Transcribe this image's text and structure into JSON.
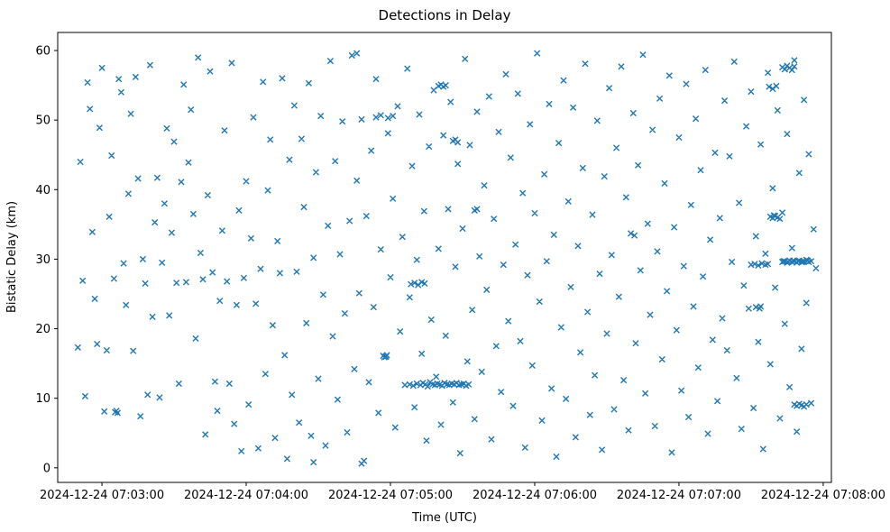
{
  "chart_data": {
    "type": "scatter",
    "title": "Detections in Delay",
    "xlabel": "Time (UTC)",
    "ylabel": "Bistatic Delay (km)",
    "marker": "x",
    "color": "#1f77b4",
    "grid": false,
    "legend": "none",
    "x_unit": "seconds after 2024-12-24 07:03:00 UTC",
    "xlim_seconds": [
      -18.4,
      303.4
    ],
    "ylim": [
      -2.1,
      62.6
    ],
    "x_ticks_seconds": [
      0,
      60,
      120,
      180,
      240,
      300
    ],
    "x_tick_labels": [
      "2024-12-24 07:03:00",
      "2024-12-24 07:04:00",
      "2024-12-24 07:05:00",
      "2024-12-24 07:06:00",
      "2024-12-24 07:07:00",
      "2024-12-24 07:08:00"
    ],
    "y_ticks": [
      0,
      10,
      20,
      30,
      40,
      50,
      60
    ],
    "points": [
      [
        -10,
        17.3
      ],
      [
        -9,
        44.0
      ],
      [
        -8,
        26.9
      ],
      [
        -7,
        10.3
      ],
      [
        -6,
        55.4
      ],
      [
        -5,
        51.6
      ],
      [
        -4,
        33.9
      ],
      [
        -3,
        24.3
      ],
      [
        -2,
        17.8
      ],
      [
        -1,
        48.9
      ],
      [
        0,
        57.5
      ],
      [
        1,
        8.1
      ],
      [
        2,
        16.9
      ],
      [
        3,
        36.1
      ],
      [
        4,
        44.9
      ],
      [
        5,
        27.2
      ],
      [
        6,
        8.2
      ],
      [
        7,
        55.9
      ],
      [
        8,
        54.0
      ],
      [
        9,
        29.4
      ],
      [
        10,
        23.4
      ],
      [
        11,
        39.4
      ],
      [
        12,
        50.9
      ],
      [
        13,
        16.8
      ],
      [
        14,
        56.2
      ],
      [
        15,
        41.6
      ],
      [
        16,
        7.4
      ],
      [
        17,
        30.0
      ],
      [
        18,
        26.5
      ],
      [
        19,
        10.5
      ],
      [
        20,
        57.9
      ],
      [
        21,
        21.7
      ],
      [
        22,
        35.3
      ],
      [
        23,
        41.7
      ],
      [
        24,
        10.1
      ],
      [
        25,
        29.5
      ],
      [
        26,
        38.0
      ],
      [
        27,
        48.8
      ],
      [
        28,
        21.9
      ],
      [
        29,
        33.8
      ],
      [
        30,
        46.9
      ],
      [
        31,
        26.6
      ],
      [
        32,
        12.1
      ],
      [
        33,
        41.1
      ],
      [
        34,
        55.1
      ],
      [
        35,
        26.7
      ],
      [
        36,
        43.9
      ],
      [
        37,
        51.5
      ],
      [
        38,
        36.5
      ],
      [
        39,
        18.6
      ],
      [
        40,
        59.0
      ],
      [
        41,
        30.9
      ],
      [
        42,
        27.1
      ],
      [
        43,
        4.8
      ],
      [
        44,
        39.2
      ],
      [
        45,
        57.0
      ],
      [
        46,
        28.1
      ],
      [
        47,
        12.4
      ],
      [
        48,
        8.2
      ],
      [
        49,
        24.0
      ],
      [
        50,
        34.1
      ],
      [
        51,
        48.5
      ],
      [
        52,
        26.8
      ],
      [
        53,
        12.1
      ],
      [
        54,
        58.2
      ],
      [
        55,
        6.3
      ],
      [
        56,
        23.4
      ],
      [
        57,
        37.0
      ],
      [
        58,
        2.4
      ],
      [
        59,
        27.3
      ],
      [
        60,
        41.2
      ],
      [
        61,
        9.1
      ],
      [
        62,
        33.0
      ],
      [
        63,
        50.4
      ],
      [
        64,
        23.6
      ],
      [
        65,
        2.8
      ],
      [
        66,
        28.6
      ],
      [
        67,
        55.5
      ],
      [
        68,
        13.5
      ],
      [
        69,
        39.9
      ],
      [
        70,
        47.2
      ],
      [
        71,
        20.5
      ],
      [
        72,
        4.3
      ],
      [
        73,
        32.6
      ],
      [
        74,
        28.0
      ],
      [
        75,
        56.0
      ],
      [
        76,
        16.2
      ],
      [
        77,
        1.3
      ],
      [
        78,
        44.3
      ],
      [
        79,
        10.5
      ],
      [
        80,
        52.1
      ],
      [
        81,
        28.2
      ],
      [
        82,
        6.5
      ],
      [
        83,
        47.3
      ],
      [
        84,
        37.5
      ],
      [
        85,
        20.8
      ],
      [
        86,
        55.3
      ],
      [
        87,
        4.6
      ],
      [
        88,
        30.2
      ],
      [
        89,
        42.5
      ],
      [
        90,
        12.8
      ],
      [
        91,
        50.6
      ],
      [
        92,
        24.9
      ],
      [
        93,
        3.2
      ],
      [
        94,
        34.8
      ],
      [
        95,
        58.5
      ],
      [
        96,
        18.9
      ],
      [
        97,
        44.1
      ],
      [
        98,
        9.8
      ],
      [
        99,
        30.7
      ],
      [
        100,
        49.8
      ],
      [
        101,
        22.2
      ],
      [
        102,
        5.1
      ],
      [
        103,
        35.5
      ],
      [
        104,
        59.3
      ],
      [
        105,
        14.2
      ],
      [
        106,
        41.3
      ],
      [
        107,
        25.1
      ],
      [
        108,
        50.1
      ],
      [
        109,
        1.0
      ],
      [
        110,
        36.2
      ],
      [
        111,
        12.3
      ],
      [
        112,
        45.6
      ],
      [
        113,
        23.1
      ],
      [
        114,
        55.9
      ],
      [
        115,
        7.9
      ],
      [
        116,
        31.4
      ],
      [
        117,
        16.1
      ],
      [
        118,
        16.0
      ],
      [
        119,
        48.1
      ],
      [
        120,
        27.4
      ],
      [
        121,
        38.7
      ],
      [
        122,
        5.8
      ],
      [
        123,
        52.0
      ],
      [
        124,
        19.6
      ],
      [
        125,
        33.2
      ],
      [
        126,
        11.9
      ],
      [
        127,
        57.4
      ],
      [
        128,
        24.5
      ],
      [
        129,
        43.4
      ],
      [
        130,
        8.7
      ],
      [
        131,
        29.9
      ],
      [
        132,
        50.8
      ],
      [
        133,
        16.4
      ],
      [
        134,
        36.9
      ],
      [
        135,
        3.9
      ],
      [
        136,
        46.2
      ],
      [
        137,
        21.3
      ],
      [
        138,
        54.3
      ],
      [
        139,
        13.1
      ],
      [
        140,
        31.5
      ],
      [
        141,
        6.2
      ],
      [
        142,
        47.8
      ],
      [
        143,
        19.0
      ],
      [
        144,
        37.2
      ],
      [
        145,
        52.6
      ],
      [
        146,
        9.4
      ],
      [
        147,
        28.9
      ],
      [
        148,
        43.7
      ],
      [
        149,
        2.1
      ],
      [
        150,
        34.4
      ],
      [
        151,
        58.8
      ],
      [
        152,
        15.3
      ],
      [
        153,
        46.4
      ],
      [
        154,
        22.7
      ],
      [
        155,
        7.0
      ],
      [
        156,
        51.2
      ],
      [
        157,
        30.4
      ],
      [
        158,
        13.8
      ],
      [
        159,
        40.6
      ],
      [
        160,
        25.6
      ],
      [
        161,
        53.4
      ],
      [
        162,
        4.1
      ],
      [
        163,
        35.8
      ],
      [
        164,
        17.5
      ],
      [
        165,
        48.3
      ],
      [
        166,
        10.9
      ],
      [
        167,
        29.2
      ],
      [
        168,
        56.6
      ],
      [
        169,
        21.1
      ],
      [
        170,
        44.6
      ],
      [
        171,
        8.9
      ],
      [
        172,
        32.1
      ],
      [
        173,
        53.8
      ],
      [
        174,
        18.2
      ],
      [
        175,
        39.5
      ],
      [
        176,
        2.9
      ],
      [
        177,
        27.7
      ],
      [
        178,
        49.4
      ],
      [
        179,
        14.7
      ],
      [
        180,
        36.6
      ],
      [
        181,
        59.6
      ],
      [
        182,
        23.9
      ],
      [
        183,
        6.8
      ],
      [
        184,
        42.2
      ],
      [
        185,
        29.7
      ],
      [
        186,
        52.3
      ],
      [
        187,
        11.4
      ],
      [
        188,
        33.5
      ],
      [
        189,
        1.6
      ],
      [
        190,
        46.7
      ],
      [
        191,
        20.2
      ],
      [
        192,
        55.7
      ],
      [
        193,
        9.9
      ],
      [
        194,
        38.3
      ],
      [
        195,
        26.0
      ],
      [
        196,
        51.8
      ],
      [
        197,
        4.4
      ],
      [
        198,
        31.9
      ],
      [
        199,
        16.6
      ],
      [
        200,
        43.1
      ],
      [
        201,
        58.1
      ],
      [
        202,
        22.4
      ],
      [
        203,
        7.6
      ],
      [
        204,
        36.4
      ],
      [
        205,
        13.3
      ],
      [
        206,
        49.9
      ],
      [
        207,
        27.9
      ],
      [
        208,
        2.6
      ],
      [
        209,
        41.9
      ],
      [
        210,
        19.3
      ],
      [
        211,
        54.6
      ],
      [
        212,
        30.6
      ],
      [
        213,
        8.4
      ],
      [
        214,
        46.0
      ],
      [
        215,
        24.6
      ],
      [
        216,
        57.7
      ],
      [
        217,
        12.6
      ],
      [
        218,
        38.9
      ],
      [
        219,
        5.4
      ],
      [
        220,
        33.7
      ],
      [
        221,
        51.0
      ],
      [
        222,
        17.9
      ],
      [
        223,
        43.5
      ],
      [
        224,
        28.4
      ],
      [
        225,
        59.4
      ],
      [
        226,
        10.7
      ],
      [
        227,
        35.1
      ],
      [
        228,
        22.0
      ],
      [
        229,
        48.6
      ],
      [
        230,
        6.0
      ],
      [
        231,
        31.1
      ],
      [
        232,
        53.1
      ],
      [
        233,
        15.6
      ],
      [
        234,
        40.9
      ],
      [
        235,
        25.4
      ],
      [
        236,
        56.4
      ],
      [
        237,
        2.2
      ],
      [
        238,
        34.6
      ],
      [
        239,
        19.8
      ],
      [
        240,
        47.5
      ],
      [
        241,
        11.1
      ],
      [
        242,
        29.0
      ],
      [
        243,
        55.2
      ],
      [
        244,
        7.3
      ],
      [
        245,
        37.8
      ],
      [
        246,
        23.2
      ],
      [
        247,
        50.2
      ],
      [
        248,
        14.4
      ],
      [
        249,
        42.8
      ],
      [
        250,
        27.5
      ],
      [
        251,
        57.2
      ],
      [
        252,
        4.9
      ],
      [
        253,
        32.8
      ],
      [
        254,
        18.4
      ],
      [
        255,
        45.3
      ],
      [
        256,
        9.6
      ],
      [
        257,
        35.9
      ],
      [
        258,
        21.5
      ],
      [
        259,
        52.8
      ],
      [
        260,
        16.9
      ],
      [
        261,
        44.8
      ],
      [
        262,
        29.6
      ],
      [
        263,
        58.4
      ],
      [
        264,
        12.9
      ],
      [
        265,
        38.1
      ],
      [
        266,
        5.6
      ],
      [
        267,
        26.2
      ],
      [
        268,
        49.1
      ],
      [
        269,
        22.9
      ],
      [
        270,
        54.1
      ],
      [
        271,
        8.6
      ],
      [
        272,
        33.3
      ],
      [
        273,
        18.1
      ],
      [
        274,
        46.5
      ],
      [
        275,
        2.7
      ],
      [
        276,
        30.8
      ],
      [
        277,
        56.8
      ],
      [
        278,
        14.9
      ],
      [
        279,
        40.2
      ],
      [
        280,
        25.9
      ],
      [
        281,
        51.4
      ],
      [
        282,
        7.1
      ],
      [
        283,
        36.7
      ],
      [
        284,
        20.7
      ],
      [
        285,
        48.0
      ],
      [
        286,
        11.6
      ],
      [
        287,
        31.6
      ],
      [
        288,
        58.6
      ],
      [
        289,
        5.2
      ],
      [
        290,
        42.4
      ],
      [
        291,
        17.1
      ],
      [
        292,
        52.9
      ],
      [
        293,
        23.7
      ],
      [
        294,
        45.1
      ],
      [
        295,
        9.3
      ],
      [
        296,
        34.3
      ],
      [
        297,
        28.7
      ],
      [
        5.5,
        8.0
      ],
      [
        6.5,
        7.9
      ],
      [
        114,
        50.4
      ],
      [
        116,
        50.7
      ],
      [
        119,
        50.3
      ],
      [
        121,
        50.6
      ],
      [
        117.5,
        15.9
      ],
      [
        118.5,
        16.2
      ],
      [
        118.2,
        16.0
      ],
      [
        128,
        12.0
      ],
      [
        129.5,
        11.8
      ],
      [
        131,
        12.1
      ],
      [
        132.5,
        11.9
      ],
      [
        133.5,
        12.2
      ],
      [
        134.5,
        12.0
      ],
      [
        135.5,
        11.7
      ],
      [
        136.5,
        12.3
      ],
      [
        137.5,
        12.0
      ],
      [
        138.5,
        11.9
      ],
      [
        139.5,
        12.1
      ],
      [
        140.5,
        12.0
      ],
      [
        141.5,
        11.8
      ],
      [
        142.5,
        12.2
      ],
      [
        143.5,
        12.0
      ],
      [
        144.5,
        11.9
      ],
      [
        145.5,
        12.1
      ],
      [
        146.5,
        12.0
      ],
      [
        147.5,
        12.2
      ],
      [
        148.5,
        11.9
      ],
      [
        149.5,
        12.0
      ],
      [
        150.5,
        12.1
      ],
      [
        151.5,
        11.8
      ],
      [
        152.5,
        12.0
      ],
      [
        128.5,
        26.4
      ],
      [
        130,
        26.6
      ],
      [
        131.5,
        26.3
      ],
      [
        133,
        26.7
      ],
      [
        134.2,
        26.5
      ],
      [
        140,
        54.9
      ],
      [
        141,
        55.1
      ],
      [
        142,
        54.8
      ],
      [
        143,
        55.0
      ],
      [
        146,
        47.0
      ],
      [
        147,
        47.2
      ],
      [
        148,
        46.8
      ],
      [
        155,
        37.0
      ],
      [
        156,
        37.2
      ],
      [
        106,
        59.6
      ],
      [
        88,
        0.8
      ],
      [
        108,
        0.6
      ],
      [
        270,
        29.2
      ],
      [
        271.5,
        29.3
      ],
      [
        273,
        29.1
      ],
      [
        274.5,
        29.4
      ],
      [
        276,
        29.2
      ],
      [
        277,
        29.3
      ],
      [
        283,
        29.6
      ],
      [
        284,
        29.7
      ],
      [
        285,
        29.5
      ],
      [
        286,
        29.8
      ],
      [
        287,
        29.6
      ],
      [
        288,
        29.7
      ],
      [
        289,
        29.5
      ],
      [
        290,
        29.8
      ],
      [
        291,
        29.6
      ],
      [
        292,
        29.7
      ],
      [
        293,
        29.9
      ],
      [
        294,
        29.6
      ],
      [
        295,
        29.7
      ],
      [
        283.5,
        29.7
      ],
      [
        285.5,
        29.6
      ],
      [
        287.5,
        29.8
      ],
      [
        289.5,
        29.7
      ],
      [
        291.5,
        29.6
      ],
      [
        293.5,
        29.8
      ],
      [
        278,
        36.1
      ],
      [
        279,
        35.9
      ],
      [
        280,
        36.2
      ],
      [
        281,
        36.0
      ],
      [
        282,
        35.8
      ],
      [
        279.5,
        36.3
      ],
      [
        283,
        57.6
      ],
      [
        284,
        57.3
      ],
      [
        285,
        57.8
      ],
      [
        286,
        57.5
      ],
      [
        287,
        57.2
      ],
      [
        288,
        57.7
      ],
      [
        277.5,
        54.8
      ],
      [
        279,
        54.5
      ],
      [
        280.5,
        54.9
      ],
      [
        288,
        9.1
      ],
      [
        289,
        8.9
      ],
      [
        290,
        9.2
      ],
      [
        291,
        9.0
      ],
      [
        292,
        8.8
      ],
      [
        293,
        9.1
      ],
      [
        272,
        23.1
      ],
      [
        273.5,
        22.9
      ],
      [
        274,
        23.2
      ],
      [
        221.5,
        33.4
      ]
    ]
  }
}
